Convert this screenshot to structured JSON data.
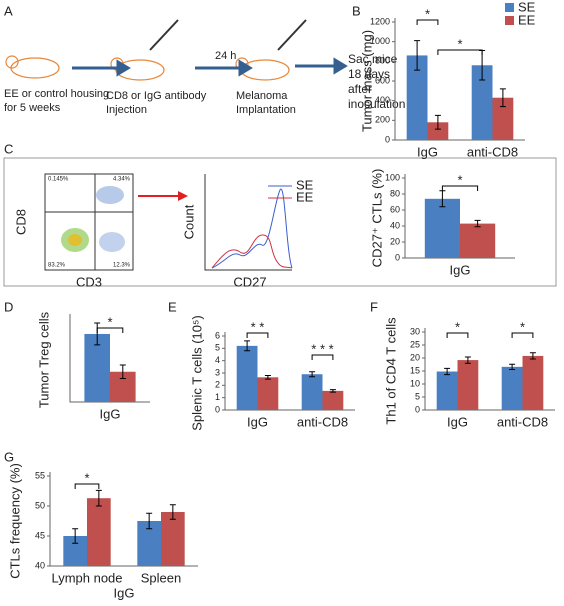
{
  "panel_labels": [
    "A",
    "B",
    "C",
    "D",
    "E",
    "F",
    "G"
  ],
  "diagram": {
    "steps": [
      [
        "EE or control housing",
        "for 5 weeks"
      ],
      [
        "CD8 or IgG antibody",
        "Injection"
      ],
      [
        "Melanoma",
        "Implantation"
      ],
      [
        "Sac mice",
        "18 days",
        "after",
        "inoculation"
      ]
    ],
    "arrow_label": "24 h"
  },
  "flow": {
    "y_label": "CD8",
    "x_label": "CD3",
    "quadrants": [
      "0.145%",
      "4.34%",
      "83.2%",
      "12.3%"
    ]
  },
  "histogram": {
    "y_label": "Count",
    "x_label": "CD27",
    "legend": [
      {
        "name": "SE",
        "color": "#3a5fcd"
      },
      {
        "name": "EE",
        "color": "#d03040"
      }
    ]
  },
  "chart_data": [
    {
      "type": "bar",
      "y_label": "Tumor mass (mg)",
      "categories": [
        "IgG",
        "anti-CD8"
      ],
      "series": [
        {
          "name": "SE",
          "color": "#4a7fc1",
          "values": [
            860,
            760
          ],
          "errors": [
            150,
            150
          ]
        },
        {
          "name": "EE",
          "color": "#c0504d",
          "values": [
            180,
            430
          ],
          "errors": [
            70,
            90
          ]
        }
      ],
      "ylim": [
        0,
        1200
      ],
      "yticks": [
        0,
        200,
        400,
        600,
        800,
        1000,
        1200
      ],
      "legend": "top-right",
      "annotations": [
        "*",
        "*"
      ]
    },
    {
      "type": "bar",
      "y_label": "CD27⁺ CTLs (%)",
      "categories": [
        "IgG"
      ],
      "series": [
        {
          "name": "SE",
          "color": "#4a7fc1",
          "values": [
            74
          ],
          "errors": [
            10
          ]
        },
        {
          "name": "EE",
          "color": "#c0504d",
          "values": [
            43
          ],
          "errors": [
            4
          ]
        }
      ],
      "ylim": [
        0,
        100
      ],
      "yticks": [
        0,
        20,
        40,
        60,
        80,
        100
      ],
      "annotations": [
        "*"
      ]
    },
    {
      "type": "bar",
      "y_label": "Tumor Treg cells",
      "categories": [
        "IgG"
      ],
      "series": [
        {
          "name": "SE",
          "color": "#4a7fc1",
          "values": [
            4.05
          ],
          "errors": [
            0.65
          ]
        },
        {
          "name": "EE",
          "color": "#c0504d",
          "values": [
            1.8
          ],
          "errors": [
            0.4
          ]
        }
      ],
      "ylim": [
        0,
        5
      ],
      "annotations": [
        "*"
      ]
    },
    {
      "type": "bar",
      "y_label": "Splenic T cells (10⁵)",
      "categories": [
        "IgG",
        "anti-CD8"
      ],
      "series": [
        {
          "name": "SE",
          "color": "#4a7fc1",
          "values": [
            5.2,
            2.9
          ],
          "errors": [
            0.4,
            0.2
          ]
        },
        {
          "name": "EE",
          "color": "#c0504d",
          "values": [
            2.65,
            1.55
          ],
          "errors": [
            0.15,
            0.1
          ]
        }
      ],
      "ylim": [
        0,
        6
      ],
      "yticks": [
        0,
        1,
        2,
        3,
        4,
        5,
        6
      ],
      "annotations": [
        "* *",
        "* * *"
      ]
    },
    {
      "type": "bar",
      "y_label": "Th1 of CD4 T cells",
      "categories": [
        "IgG",
        "anti-CD8"
      ],
      "series": [
        {
          "name": "SE",
          "color": "#4a7fc1",
          "values": [
            14.8,
            16.6
          ],
          "errors": [
            1.2,
            1.0
          ]
        },
        {
          "name": "EE",
          "color": "#c0504d",
          "values": [
            19.2,
            20.8
          ],
          "errors": [
            1.2,
            1.2
          ]
        }
      ],
      "ylim": [
        0,
        30
      ],
      "yticks": [
        0,
        5,
        10,
        15,
        20,
        25,
        30
      ],
      "annotations": [
        "*",
        "*"
      ]
    },
    {
      "type": "bar",
      "y_label": "CTLs  frequency (%)",
      "x_label": "IgG",
      "categories": [
        "Lymph node",
        "Spleen"
      ],
      "series": [
        {
          "name": "SE",
          "color": "#4a7fc1",
          "values": [
            45,
            47.5
          ],
          "errors": [
            1.2,
            1.3
          ]
        },
        {
          "name": "EE",
          "color": "#c0504d",
          "values": [
            51.3,
            49
          ],
          "errors": [
            1.3,
            1.2
          ]
        }
      ],
      "ylim": [
        40,
        55
      ],
      "yticks": [
        40,
        45,
        50,
        55
      ],
      "annotations": [
        "*"
      ]
    }
  ]
}
